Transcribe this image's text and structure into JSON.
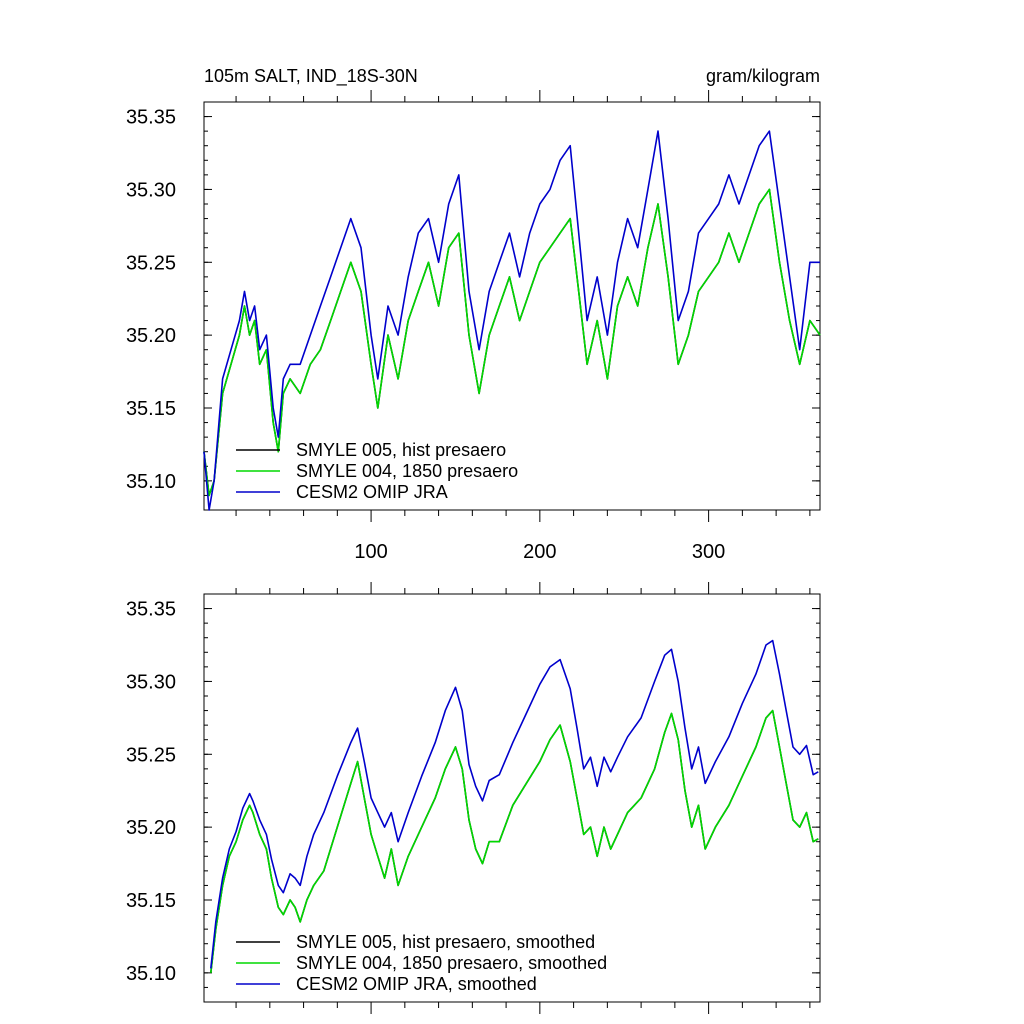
{
  "chart_data": [
    {
      "type": "line",
      "title": "105m SALT, IND_18S-30N",
      "units": "gram/kilogram",
      "xlim": [
        1,
        366
      ],
      "ylim": [
        35.08,
        35.36
      ],
      "x_ticks": [
        100,
        200,
        300
      ],
      "x_tick_labels": [
        "100",
        "200",
        "300"
      ],
      "y_ticks": [
        35.1,
        35.15,
        35.2,
        35.25,
        35.3,
        35.35
      ],
      "y_tick_labels": [
        "35.10",
        "35.15",
        "35.20",
        "35.25",
        "35.30",
        "35.35"
      ],
      "grid": false,
      "legend_position": "bottom-left",
      "series": [
        {
          "name": "SMYLE 005, hist presaero",
          "color": "#000000",
          "x": [
            1,
            4,
            7,
            12,
            17,
            22,
            25,
            28,
            31,
            34,
            38,
            42,
            45,
            48,
            52,
            58,
            64,
            70,
            76,
            82,
            88,
            94,
            100,
            104,
            110,
            116,
            122,
            128,
            134,
            140,
            146,
            152,
            158,
            164,
            170,
            176,
            182,
            188,
            194,
            200,
            206,
            212,
            218,
            223,
            228,
            234,
            240,
            246,
            252,
            258,
            264,
            270,
            276,
            282,
            288,
            294,
            300,
            306,
            312,
            318,
            324,
            330,
            336,
            342,
            348,
            354,
            360,
            366
          ],
          "y": [
            35.12,
            35.09,
            35.1,
            35.16,
            35.18,
            35.2,
            35.22,
            35.2,
            35.21,
            35.18,
            35.19,
            35.14,
            35.12,
            35.16,
            35.17,
            35.16,
            35.18,
            35.19,
            35.21,
            35.23,
            35.25,
            35.23,
            35.18,
            35.15,
            35.2,
            35.17,
            35.21,
            35.23,
            35.25,
            35.22,
            35.26,
            35.27,
            35.2,
            35.16,
            35.2,
            35.22,
            35.24,
            35.21,
            35.23,
            35.25,
            35.26,
            35.27,
            35.28,
            35.23,
            35.18,
            35.21,
            35.17,
            35.22,
            35.24,
            35.22,
            35.26,
            35.29,
            35.24,
            35.18,
            35.2,
            35.23,
            35.24,
            35.25,
            35.27,
            35.25,
            35.27,
            35.29,
            35.3,
            35.25,
            35.21,
            35.18,
            35.21,
            35.2
          ]
        },
        {
          "name": "SMYLE 004, 1850 presaero",
          "color": "#00d800",
          "x": [
            1,
            4,
            7,
            12,
            17,
            22,
            25,
            28,
            31,
            34,
            38,
            42,
            45,
            48,
            52,
            58,
            64,
            70,
            76,
            82,
            88,
            94,
            100,
            104,
            110,
            116,
            122,
            128,
            134,
            140,
            146,
            152,
            158,
            164,
            170,
            176,
            182,
            188,
            194,
            200,
            206,
            212,
            218,
            223,
            228,
            234,
            240,
            246,
            252,
            258,
            264,
            270,
            276,
            282,
            288,
            294,
            300,
            306,
            312,
            318,
            324,
            330,
            336,
            342,
            348,
            354,
            360,
            366
          ],
          "y": [
            35.12,
            35.09,
            35.1,
            35.16,
            35.18,
            35.2,
            35.22,
            35.2,
            35.21,
            35.18,
            35.19,
            35.14,
            35.12,
            35.16,
            35.17,
            35.16,
            35.18,
            35.19,
            35.21,
            35.23,
            35.25,
            35.23,
            35.18,
            35.15,
            35.2,
            35.17,
            35.21,
            35.23,
            35.25,
            35.22,
            35.26,
            35.27,
            35.2,
            35.16,
            35.2,
            35.22,
            35.24,
            35.21,
            35.23,
            35.25,
            35.26,
            35.27,
            35.28,
            35.23,
            35.18,
            35.21,
            35.17,
            35.22,
            35.24,
            35.22,
            35.26,
            35.29,
            35.24,
            35.18,
            35.2,
            35.23,
            35.24,
            35.25,
            35.27,
            35.25,
            35.27,
            35.29,
            35.3,
            35.25,
            35.21,
            35.18,
            35.21,
            35.2
          ]
        },
        {
          "name": "CESM2 OMIP JRA",
          "color": "#0000cc",
          "x": [
            1,
            4,
            7,
            12,
            17,
            22,
            25,
            28,
            31,
            34,
            38,
            42,
            45,
            48,
            52,
            58,
            64,
            70,
            76,
            82,
            88,
            94,
            100,
            104,
            110,
            116,
            122,
            128,
            134,
            140,
            146,
            152,
            158,
            164,
            170,
            176,
            182,
            188,
            194,
            200,
            206,
            212,
            218,
            223,
            228,
            234,
            240,
            246,
            252,
            258,
            264,
            270,
            276,
            282,
            288,
            294,
            300,
            306,
            312,
            318,
            324,
            330,
            336,
            342,
            348,
            354,
            360,
            366
          ],
          "y": [
            35.12,
            35.08,
            35.1,
            35.17,
            35.19,
            35.21,
            35.23,
            35.21,
            35.22,
            35.19,
            35.2,
            35.15,
            35.13,
            35.17,
            35.18,
            35.18,
            35.2,
            35.22,
            35.24,
            35.26,
            35.28,
            35.26,
            35.2,
            35.17,
            35.22,
            35.2,
            35.24,
            35.27,
            35.28,
            35.25,
            35.29,
            35.31,
            35.23,
            35.19,
            35.23,
            35.25,
            35.27,
            35.24,
            35.27,
            35.29,
            35.3,
            35.32,
            35.33,
            35.27,
            35.21,
            35.24,
            35.2,
            35.25,
            35.28,
            35.26,
            35.3,
            35.34,
            35.28,
            35.21,
            35.23,
            35.27,
            35.28,
            35.29,
            35.31,
            35.29,
            35.31,
            35.33,
            35.34,
            35.29,
            35.24,
            35.19,
            35.25,
            35.25
          ]
        }
      ]
    },
    {
      "type": "line",
      "xlim": [
        1,
        366
      ],
      "ylim": [
        35.08,
        35.36
      ],
      "x_ticks": [
        100,
        200,
        300
      ],
      "x_tick_labels": [
        "",
        "",
        ""
      ],
      "y_ticks": [
        35.1,
        35.15,
        35.2,
        35.25,
        35.3,
        35.35
      ],
      "y_tick_labels": [
        "35.10",
        "35.15",
        "35.20",
        "35.25",
        "35.30",
        "35.35"
      ],
      "grid": false,
      "legend_position": "bottom-left",
      "series": [
        {
          "name": "SMYLE 005, hist presaero, smoothed",
          "color": "#000000",
          "x": [
            5,
            8,
            12,
            16,
            20,
            24,
            28,
            30,
            34,
            38,
            41,
            45,
            48,
            52,
            55,
            58,
            62,
            66,
            72,
            80,
            88,
            92,
            96,
            100,
            104,
            108,
            112,
            116,
            122,
            130,
            138,
            144,
            150,
            154,
            158,
            162,
            166,
            170,
            176,
            184,
            192,
            200,
            206,
            212,
            218,
            222,
            226,
            230,
            234,
            238,
            242,
            246,
            252,
            260,
            268,
            274,
            278,
            282,
            286,
            290,
            294,
            298,
            304,
            312,
            320,
            328,
            334,
            338,
            342,
            346,
            350,
            354,
            358,
            362,
            365
          ],
          "y": [
            35.1,
            35.13,
            35.16,
            35.18,
            35.19,
            35.205,
            35.215,
            35.21,
            35.195,
            35.185,
            35.165,
            35.145,
            35.14,
            35.15,
            35.145,
            35.135,
            35.15,
            35.16,
            35.17,
            35.2,
            35.23,
            35.245,
            35.22,
            35.195,
            35.18,
            35.165,
            35.185,
            35.16,
            35.18,
            35.2,
            35.22,
            35.24,
            35.255,
            35.24,
            35.205,
            35.185,
            35.175,
            35.19,
            35.19,
            35.215,
            35.23,
            35.245,
            35.26,
            35.27,
            35.245,
            35.22,
            35.195,
            35.2,
            35.18,
            35.2,
            35.185,
            35.195,
            35.21,
            35.22,
            35.24,
            35.265,
            35.278,
            35.26,
            35.225,
            35.2,
            35.215,
            35.185,
            35.2,
            35.215,
            35.235,
            35.255,
            35.275,
            35.28,
            35.255,
            35.23,
            35.205,
            35.2,
            35.21,
            35.19,
            35.192
          ]
        },
        {
          "name": "SMYLE 004, 1850 presaero, smoothed",
          "color": "#00d800",
          "x": [
            5,
            8,
            12,
            16,
            20,
            24,
            28,
            30,
            34,
            38,
            41,
            45,
            48,
            52,
            55,
            58,
            62,
            66,
            72,
            80,
            88,
            92,
            96,
            100,
            104,
            108,
            112,
            116,
            122,
            130,
            138,
            144,
            150,
            154,
            158,
            162,
            166,
            170,
            176,
            184,
            192,
            200,
            206,
            212,
            218,
            222,
            226,
            230,
            234,
            238,
            242,
            246,
            252,
            260,
            268,
            274,
            278,
            282,
            286,
            290,
            294,
            298,
            304,
            312,
            320,
            328,
            334,
            338,
            342,
            346,
            350,
            354,
            358,
            362,
            365
          ],
          "y": [
            35.1,
            35.13,
            35.16,
            35.18,
            35.19,
            35.205,
            35.215,
            35.21,
            35.195,
            35.185,
            35.165,
            35.145,
            35.14,
            35.15,
            35.145,
            35.135,
            35.15,
            35.16,
            35.17,
            35.2,
            35.23,
            35.245,
            35.22,
            35.195,
            35.18,
            35.165,
            35.185,
            35.16,
            35.18,
            35.2,
            35.22,
            35.24,
            35.255,
            35.24,
            35.205,
            35.185,
            35.175,
            35.19,
            35.19,
            35.215,
            35.23,
            35.245,
            35.26,
            35.27,
            35.245,
            35.22,
            35.195,
            35.2,
            35.18,
            35.2,
            35.185,
            35.195,
            35.21,
            35.22,
            35.24,
            35.265,
            35.278,
            35.26,
            35.225,
            35.2,
            35.215,
            35.185,
            35.2,
            35.215,
            35.235,
            35.255,
            35.275,
            35.28,
            35.255,
            35.23,
            35.205,
            35.2,
            35.21,
            35.19,
            35.192
          ]
        },
        {
          "name": "CESM2 OMIP JRA, smoothed",
          "color": "#0000cc",
          "x": [
            5,
            8,
            12,
            16,
            20,
            24,
            28,
            30,
            34,
            38,
            41,
            45,
            48,
            52,
            55,
            58,
            62,
            66,
            72,
            80,
            88,
            92,
            96,
            100,
            104,
            108,
            112,
            116,
            122,
            130,
            138,
            144,
            150,
            154,
            158,
            162,
            166,
            170,
            176,
            184,
            192,
            200,
            206,
            212,
            218,
            222,
            226,
            230,
            234,
            238,
            242,
            246,
            252,
            260,
            268,
            274,
            278,
            282,
            286,
            290,
            294,
            298,
            304,
            312,
            320,
            328,
            334,
            338,
            342,
            346,
            350,
            354,
            358,
            362,
            365
          ],
          "y": [
            35.103,
            35.135,
            35.165,
            35.185,
            35.197,
            35.213,
            35.223,
            35.218,
            35.205,
            35.195,
            35.178,
            35.16,
            35.155,
            35.168,
            35.165,
            35.16,
            35.18,
            35.195,
            35.21,
            35.235,
            35.258,
            35.268,
            35.245,
            35.22,
            35.21,
            35.2,
            35.21,
            35.19,
            35.21,
            35.235,
            35.258,
            35.28,
            35.296,
            35.28,
            35.243,
            35.228,
            35.218,
            35.232,
            35.236,
            35.258,
            35.278,
            35.298,
            35.31,
            35.315,
            35.295,
            35.268,
            35.24,
            35.248,
            35.228,
            35.248,
            35.238,
            35.248,
            35.262,
            35.275,
            35.3,
            35.318,
            35.322,
            35.3,
            35.268,
            35.24,
            35.255,
            35.23,
            35.245,
            35.262,
            35.285,
            35.305,
            35.325,
            35.328,
            35.305,
            35.28,
            35.255,
            35.25,
            35.256,
            35.236,
            35.238
          ]
        }
      ]
    }
  ]
}
